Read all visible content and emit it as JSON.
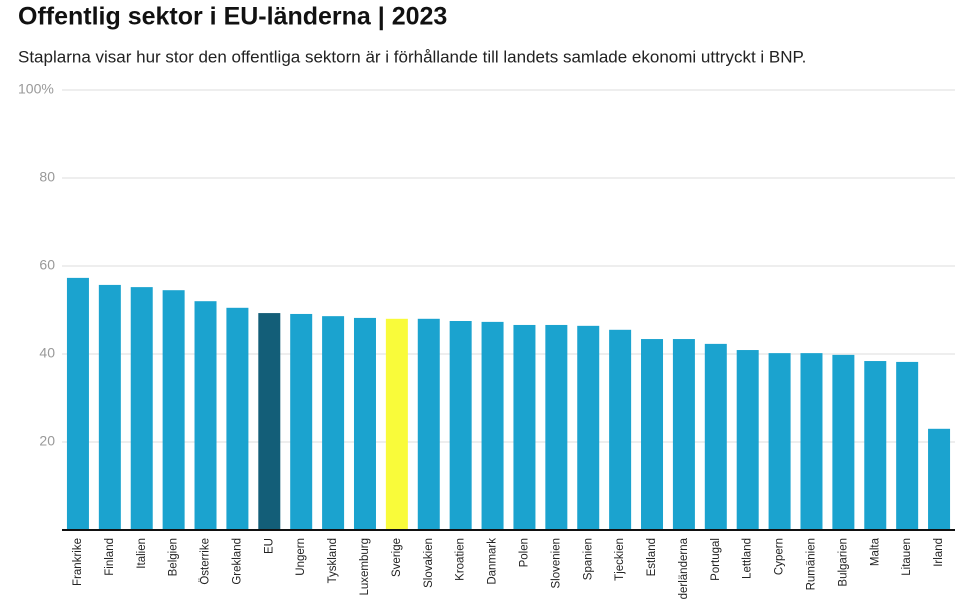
{
  "chart_data": {
    "type": "bar",
    "title": "Offentlig sektor i EU-länderna | 2023",
    "subtitle": "Staplarna visar hur stor den offentliga sektorn är i förhållande till landets samlade ekonomi uttryckt i BNP.",
    "categories": [
      "Frankrike",
      "Finland",
      "Italien",
      "Belgien",
      "Österrike",
      "Grekland",
      "EU",
      "Ungern",
      "Tyskland",
      "Luxemburg",
      "Sverige",
      "Slovakien",
      "Kroatien",
      "Danmark",
      "Polen",
      "Slovenien",
      "Spanien",
      "Tjeckien",
      "Estland",
      "derländerna",
      "Portugal",
      "Lettland",
      "Cypern",
      "Rumänien",
      "Bulgarien",
      "Malta",
      "Litauen",
      "Irland"
    ],
    "values": [
      57.3,
      55.7,
      55.2,
      54.5,
      52.0,
      50.5,
      49.3,
      49.1,
      48.6,
      48.2,
      48.0,
      48.0,
      47.5,
      47.3,
      46.6,
      46.6,
      46.4,
      45.5,
      43.4,
      43.4,
      42.3,
      40.9,
      40.2,
      40.2,
      39.8,
      38.4,
      38.2,
      23.0
    ],
    "colors": [
      "#1ba3cf",
      "#1ba3cf",
      "#1ba3cf",
      "#1ba3cf",
      "#1ba3cf",
      "#1ba3cf",
      "#135e78",
      "#1ba3cf",
      "#1ba3cf",
      "#1ba3cf",
      "#f9fb3a",
      "#1ba3cf",
      "#1ba3cf",
      "#1ba3cf",
      "#1ba3cf",
      "#1ba3cf",
      "#1ba3cf",
      "#1ba3cf",
      "#1ba3cf",
      "#1ba3cf",
      "#1ba3cf",
      "#1ba3cf",
      "#1ba3cf",
      "#1ba3cf",
      "#1ba3cf",
      "#1ba3cf",
      "#1ba3cf",
      "#1ba3cf"
    ],
    "ylim": [
      0,
      100
    ],
    "yticks": [
      20,
      40,
      60,
      80,
      {
        "value": 100,
        "label": "100%"
      }
    ],
    "grid": true
  }
}
